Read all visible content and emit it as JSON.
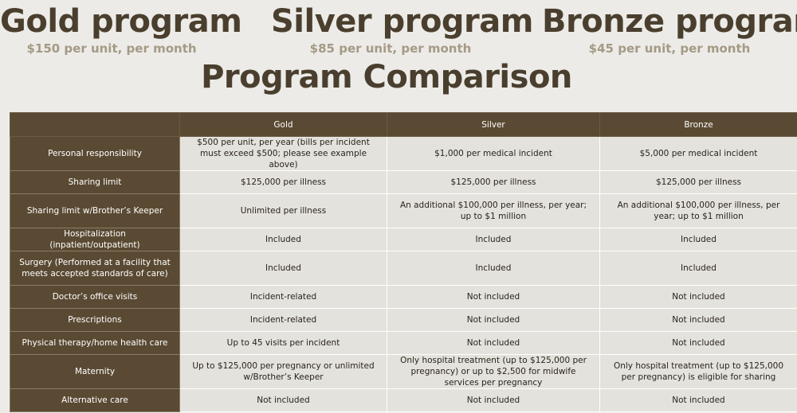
{
  "plans": [
    {
      "name": "Gold program",
      "price": "$150 per unit, per month"
    },
    {
      "name": "Silver program",
      "price": "$85 per unit, per month"
    },
    {
      "name": "Bronze program",
      "price": "$45 per unit, per month"
    }
  ],
  "section_title": "Program Comparison",
  "table": {
    "headers": [
      "",
      "Gold",
      "Silver",
      "Bronze"
    ],
    "rows": [
      {
        "label": "Personal responsibility",
        "gold": "$500 per unit, per year (bills per incident must exceed $500; please see example above)",
        "silver": "$1,000 per medical incident",
        "bronze": "$5,000 per medical incident"
      },
      {
        "label": "Sharing limit",
        "gold": "$125,000 per illness",
        "silver": "$125,000 per illness",
        "bronze": "$125,000 per illness"
      },
      {
        "label": "Sharing limit w/Brother’s Keeper",
        "gold": "Unlimited per illness",
        "silver": "An additional $100,000 per illness, per year; up to $1 million",
        "bronze": "An additional $100,000 per illness, per year; up to $1 million"
      },
      {
        "label": "Hospitalization (inpatient/outpatient)",
        "gold": "Included",
        "silver": "Included",
        "bronze": "Included"
      },
      {
        "label": "Surgery (Performed at a facility that meets accepted standards of care)",
        "gold": "Included",
        "silver": "Included",
        "bronze": "Included"
      },
      {
        "label": "Doctor’s office visits",
        "gold": "Incident-related",
        "silver": "Not included",
        "bronze": "Not included"
      },
      {
        "label": "Prescriptions",
        "gold": "Incident-related",
        "silver": "Not included",
        "bronze": "Not included"
      },
      {
        "label": "Physical therapy/home health care",
        "gold": "Up to 45 visits per incident",
        "silver": "Not included",
        "bronze": "Not included"
      },
      {
        "label": "Maternity",
        "gold": "Up to $125,000 per pregnancy or unlimited w/Brother’s Keeper",
        "silver": "Only hospital treatment (up to $125,000 per pregnancy) or up to $2,500 for midwife services per pregnancy",
        "bronze": "Only hospital treatment (up to $125,000 per pregnancy) is eligible for sharing"
      },
      {
        "label": "Alternative care",
        "gold": "Not included",
        "silver": "Not included",
        "bronze": "Not included"
      }
    ]
  },
  "colors": {
    "heading_text": "#4a3f2e",
    "price_text": "#a49a86",
    "header_bg": "#5a4a33",
    "cell_bg": "#e4e2dc",
    "page_bg": "#ecebe7"
  }
}
